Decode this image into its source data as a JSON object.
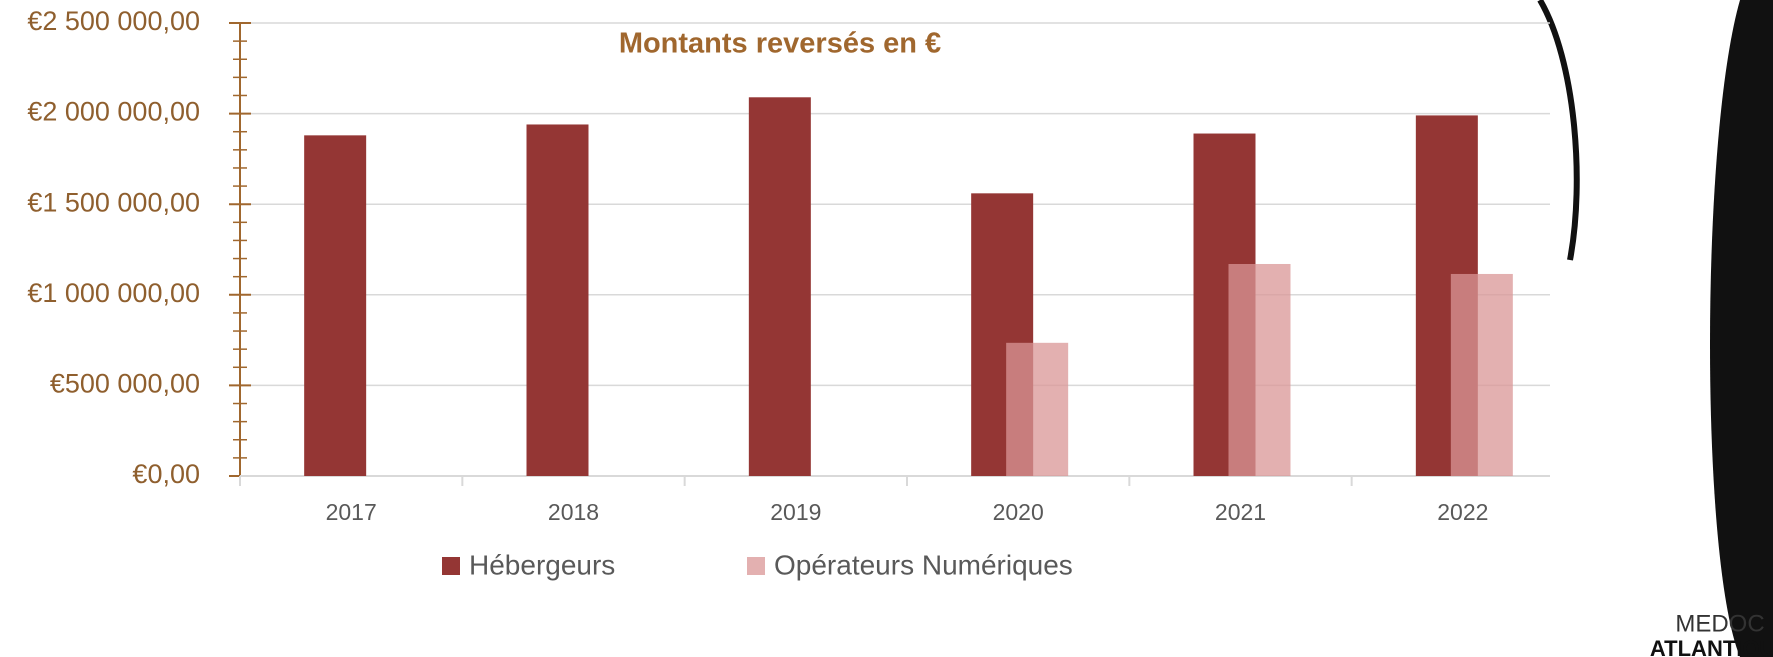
{
  "chart_data": {
    "type": "bar",
    "title": "Montants reversés en €",
    "categories": [
      "2017",
      "2018",
      "2019",
      "2020",
      "2021",
      "2022"
    ],
    "series": [
      {
        "name": "Hébergeurs",
        "color": "#943634",
        "values": [
          1880000,
          1940000,
          2090000,
          1560000,
          1890000,
          1990000
        ]
      },
      {
        "name": "Opérateurs Numériques",
        "color": "#da9696",
        "values": [
          null,
          null,
          null,
          735000,
          1170000,
          1115000
        ]
      }
    ],
    "ylim": [
      0,
      2500000
    ],
    "yticks": [
      {
        "value": 0,
        "label": "€0,00"
      },
      {
        "value": 500000,
        "label": "€500 000,00"
      },
      {
        "value": 1000000,
        "label": "€1 000 000,00"
      },
      {
        "value": 1500000,
        "label": "€1 500 000,00"
      },
      {
        "value": 2000000,
        "label": "€2 000 000,00"
      },
      {
        "value": 2500000,
        "label": "€2 500 000,00"
      }
    ],
    "y_minor_ticks": [
      100000,
      200000,
      300000,
      400000,
      600000,
      700000,
      800000,
      900000,
      1100000,
      1200000,
      1300000,
      1400000,
      1600000,
      1700000,
      1800000,
      1900000,
      2100000,
      2200000,
      2300000,
      2400000
    ],
    "grid": true,
    "legend": "bottom",
    "logo": {
      "top": "MEDOC",
      "bottom": "ATLANTIQUE"
    }
  }
}
